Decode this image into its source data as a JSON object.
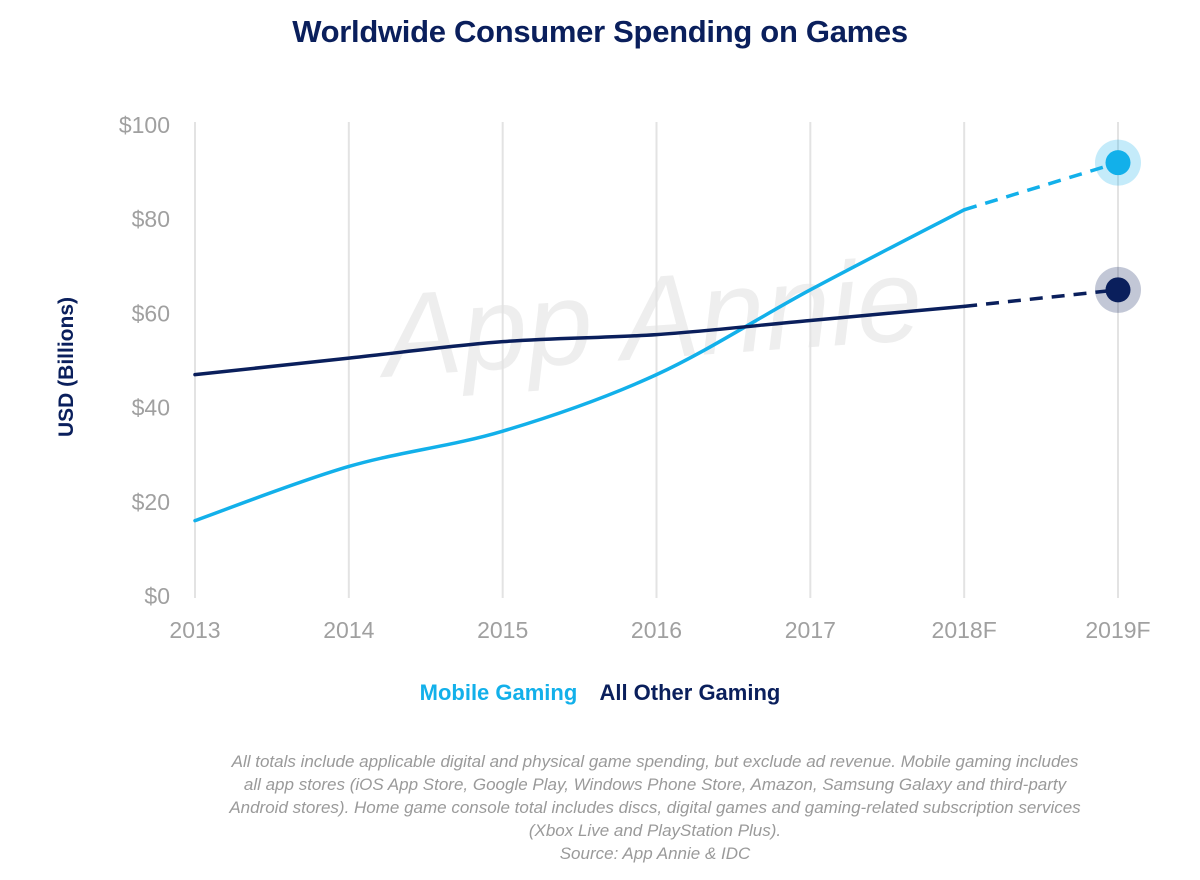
{
  "title": "Worldwide Consumer Spending on Games",
  "watermark": "App Annie",
  "colors": {
    "mobile": "#12b0ea",
    "other": "#0a1f5c",
    "grid": "#e3e3e3",
    "tick": "#a0a0a0"
  },
  "chart_data": {
    "type": "line",
    "title": "Worldwide Consumer Spending on Games",
    "xlabel": "",
    "ylabel": "USD (Billions)",
    "categories": [
      "2013",
      "2014",
      "2015",
      "2016",
      "2017",
      "2018F",
      "2019F"
    ],
    "y_tick_labels": [
      "$0",
      "$20",
      "$40",
      "$60",
      "$80",
      "$100"
    ],
    "y_ticks": [
      0,
      20,
      40,
      60,
      80,
      100
    ],
    "ylim": [
      0,
      100
    ],
    "grid": "vertical",
    "legend": "bottom-center",
    "forecast_from": "2018F",
    "series": [
      {
        "name": "Mobile Gaming",
        "color": "#12b0ea",
        "values": [
          16,
          27.5,
          35,
          47,
          65,
          82,
          92
        ]
      },
      {
        "name": "All Other Gaming",
        "color": "#0a1f5c",
        "values": [
          47,
          50.5,
          54,
          55.5,
          58.5,
          61.5,
          65
        ]
      }
    ]
  },
  "legend": {
    "mobile_label": "Mobile Gaming",
    "other_label": "All Other Gaming"
  },
  "footnote": {
    "lines": [
      "All totals include applicable digital and physical game spending, but exclude ad revenue. Mobile gaming includes",
      "all app stores (iOS App Store,  Google Play, Windows Phone Store, Amazon, Samsung Galaxy and third-party",
      "Android stores). Home game console total includes discs, digital games and gaming-related subscription services",
      "(Xbox Live and PlayStation Plus).",
      "Source: App Annie & IDC"
    ]
  }
}
